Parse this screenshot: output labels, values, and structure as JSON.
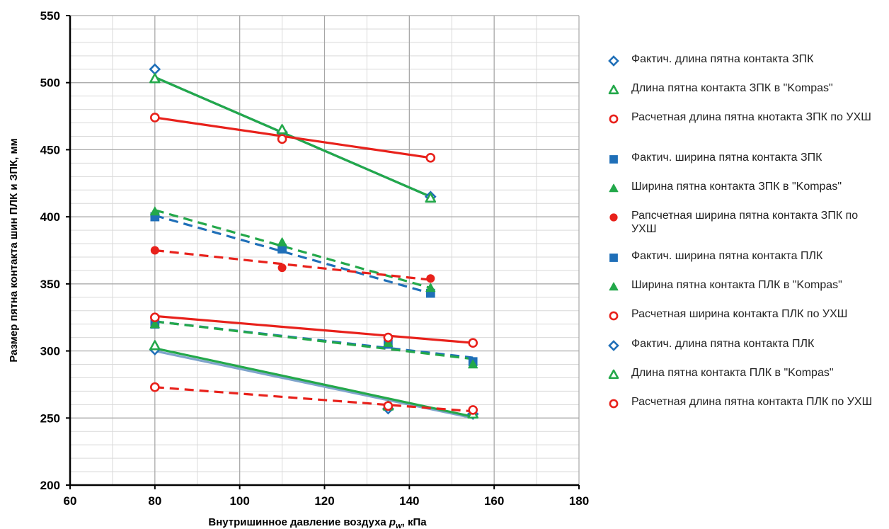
{
  "chart_data": {
    "type": "scatter",
    "title": "",
    "xlabel_main": "Внутришинное давление воздуха ",
    "xlabel_symbol": "p",
    "xlabel_sub": "w",
    "xlabel_unit": ", кПа",
    "ylabel": "Размер пятна контакта шин ПЛК и ЗПК, мм",
    "xlim": [
      60,
      180
    ],
    "ylim": [
      200,
      550
    ],
    "x_ticks": [
      "60",
      "80",
      "100",
      "120",
      "140",
      "160",
      "180"
    ],
    "y_ticks": [
      "200",
      "250",
      "300",
      "350",
      "400",
      "450",
      "500",
      "550"
    ],
    "x_tick_values": [
      60,
      80,
      100,
      120,
      140,
      160,
      180
    ],
    "y_tick_values": [
      200,
      250,
      300,
      350,
      400,
      450,
      500,
      550
    ],
    "grid": true,
    "legend_position": "right",
    "series": [
      {
        "name": "Фактич. длина пятна контакта ЗПК",
        "marker": "diamond-open",
        "color": "#1F6FB8",
        "x": [
          80,
          110,
          145
        ],
        "y": [
          510,
          463,
          415
        ],
        "trend": {
          "style": "solid",
          "color": "#1F6FB8",
          "x": [
            80,
            145
          ],
          "y": [
            504,
            415
          ]
        }
      },
      {
        "name": "Длина пятна контакта ЗПК в \"Kompas\"",
        "marker": "triangle-open",
        "color": "#23A84A",
        "x": [
          80,
          110,
          145
        ],
        "y": [
          503,
          465,
          414
        ],
        "trend": {
          "style": "solid",
          "color": "#23A84A",
          "x": [
            80,
            145
          ],
          "y": [
            504,
            415
          ]
        }
      },
      {
        "name": "Расчетная длина пятна кнотакта ЗПК по УХШ",
        "marker": "circle-open",
        "color": "#E8211B",
        "x": [
          80,
          110,
          145
        ],
        "y": [
          474,
          458,
          444
        ],
        "trend": {
          "style": "solid",
          "color": "#E8211B",
          "x": [
            80,
            145
          ],
          "y": [
            474,
            444
          ]
        }
      },
      {
        "name": "Фактич. ширина пятна контакта ЗПК",
        "marker": "square",
        "color": "#1F6FB8",
        "x": [
          80,
          110,
          145
        ],
        "y": [
          400,
          376,
          343
        ],
        "trend": {
          "style": "dashed",
          "color": "#1F6FB8",
          "x": [
            80,
            145
          ],
          "y": [
            401,
            343
          ]
        }
      },
      {
        "name": "Ширина пятна контакта ЗПК в \"Kompas\"",
        "marker": "triangle",
        "color": "#23A84A",
        "x": [
          80,
          110,
          145
        ],
        "y": [
          404,
          381,
          347
        ],
        "trend": {
          "style": "dashed",
          "color": "#23A84A",
          "x": [
            80,
            145
          ],
          "y": [
            405,
            347
          ]
        }
      },
      {
        "name": "Рапсчетная ширина пятна контакта ЗПК по УХШ",
        "marker": "circle",
        "color": "#E8211B",
        "x": [
          80,
          110,
          145
        ],
        "y": [
          375,
          362,
          354
        ],
        "trend": {
          "style": "dashed",
          "color": "#E8211B",
          "x": [
            80,
            145
          ],
          "y": [
            375,
            353
          ]
        }
      },
      {
        "name": "Фактич. ширина пятна контакта ПЛК",
        "marker": "square",
        "color": "#1F6FB8",
        "x": [
          80,
          135,
          155
        ],
        "y": [
          320,
          305,
          292
        ],
        "trend": {
          "style": "dashed",
          "color": "#1F6FB8",
          "x": [
            80,
            155
          ],
          "y": [
            322,
            295
          ]
        }
      },
      {
        "name": "Ширина пятна контакта ПЛК в \"Kompas\"",
        "marker": "triangle",
        "color": "#23A84A",
        "x": [
          80,
          135,
          155
        ],
        "y": [
          320,
          306,
          290
        ],
        "trend": {
          "style": "dashed",
          "color": "#23A84A",
          "x": [
            80,
            155
          ],
          "y": [
            322,
            294
          ]
        }
      },
      {
        "name": "Расчетная ширина контакта ПЛК по УХШ",
        "marker": "circle-open",
        "color": "#E8211B",
        "x": [
          80,
          135,
          155
        ],
        "y": [
          325,
          310,
          306
        ],
        "trend": {
          "style": "solid",
          "color": "#E8211B",
          "x": [
            80,
            155
          ],
          "y": [
            326,
            306
          ]
        }
      },
      {
        "name": "Фактич. длина пятна контакта ПЛК",
        "marker": "diamond-open",
        "color": "#1F6FB8",
        "x": [
          80,
          135,
          155
        ],
        "y": [
          301,
          257,
          253
        ],
        "trend": {
          "style": "solid",
          "color": "#7FA4CC",
          "x": [
            80,
            155
          ],
          "y": [
            300,
            250
          ]
        }
      },
      {
        "name": "Длина пятна контакта ПЛК в \"Kompas\"",
        "marker": "triangle-open",
        "color": "#23A84A",
        "x": [
          80,
          135,
          155
        ],
        "y": [
          304,
          259,
          253
        ],
        "trend": {
          "style": "solid",
          "color": "#23A84A",
          "x": [
            80,
            155
          ],
          "y": [
            302,
            251
          ]
        }
      },
      {
        "name": "Расчетная длина пятна контакта ПЛК по УХШ",
        "marker": "circle-open",
        "color": "#E8211B",
        "x": [
          80,
          135,
          155
        ],
        "y": [
          273,
          259,
          256
        ],
        "trend": {
          "style": "dashed",
          "color": "#E8211B",
          "x": [
            80,
            155
          ],
          "y": [
            273,
            255
          ]
        }
      }
    ]
  }
}
